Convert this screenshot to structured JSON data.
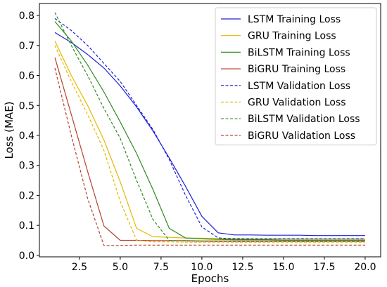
{
  "chart_data": {
    "type": "line",
    "xlabel": "Epochs",
    "ylabel": "Loss (MAE)",
    "xlim": [
      0.05,
      20.95
    ],
    "ylim": [
      -0.005,
      0.84
    ],
    "xticks": [
      2.5,
      5.0,
      7.5,
      10.0,
      12.5,
      15.0,
      17.5,
      20.0
    ],
    "xtick_labels": [
      "2.5",
      "5.0",
      "7.5",
      "10.0",
      "12.5",
      "15.0",
      "17.5",
      "20.0"
    ],
    "yticks": [
      0.0,
      0.1,
      0.2,
      0.3,
      0.4,
      0.5,
      0.6,
      0.7,
      0.8
    ],
    "ytick_labels": [
      "0.0",
      "0.1",
      "0.2",
      "0.3",
      "0.4",
      "0.5",
      "0.6",
      "0.7",
      "0.8"
    ],
    "grid": false,
    "legend_position": "top-right",
    "x": [
      1,
      2,
      3,
      4,
      5,
      6,
      7,
      8,
      9,
      10,
      11,
      12,
      13,
      14,
      15,
      16,
      17,
      18,
      19,
      20
    ],
    "series": [
      {
        "name": "LSTM Training Loss",
        "color": "#1f1fd6",
        "style": "solid",
        "values": [
          0.743,
          0.71,
          0.67,
          0.625,
          0.565,
          0.495,
          0.415,
          0.325,
          0.23,
          0.13,
          0.075,
          0.068,
          0.068,
          0.067,
          0.067,
          0.067,
          0.066,
          0.066,
          0.066,
          0.066
        ]
      },
      {
        "name": "GRU Training Loss",
        "color": "#e6b800",
        "style": "solid",
        "values": [
          0.715,
          0.6,
          0.5,
          0.385,
          0.245,
          0.09,
          0.062,
          0.06,
          0.058,
          0.057,
          0.056,
          0.056,
          0.055,
          0.055,
          0.055,
          0.055,
          0.055,
          0.055,
          0.055,
          0.055
        ]
      },
      {
        "name": "BiLSTM Training Loss",
        "color": "#2e8b1e",
        "style": "solid",
        "values": [
          0.78,
          0.715,
          0.635,
          0.545,
          0.445,
          0.34,
          0.22,
          0.09,
          0.058,
          0.055,
          0.053,
          0.052,
          0.052,
          0.052,
          0.051,
          0.051,
          0.051,
          0.051,
          0.051,
          0.051
        ]
      },
      {
        "name": "BiGRU Training Loss",
        "color": "#b5422e",
        "style": "solid",
        "values": [
          0.66,
          0.47,
          0.28,
          0.098,
          0.05,
          0.05,
          0.049,
          0.049,
          0.049,
          0.048,
          0.048,
          0.048,
          0.048,
          0.048,
          0.048,
          0.048,
          0.048,
          0.048,
          0.048,
          0.048
        ]
      },
      {
        "name": "LSTM Validation Loss",
        "color": "#1f1fd6",
        "style": "dashed",
        "values": [
          0.79,
          0.75,
          0.7,
          0.64,
          0.58,
          0.5,
          0.42,
          0.32,
          0.2,
          0.095,
          0.058,
          0.055,
          0.055,
          0.055,
          0.055,
          0.055,
          0.055,
          0.055,
          0.055,
          0.055
        ]
      },
      {
        "name": "GRU Validation Loss",
        "color": "#e6b800",
        "style": "dashed",
        "values": [
          0.7,
          0.58,
          0.47,
          0.35,
          0.18,
          0.05,
          0.045,
          0.045,
          0.044,
          0.044,
          0.044,
          0.044,
          0.044,
          0.044,
          0.044,
          0.044,
          0.044,
          0.044,
          0.044,
          0.044
        ]
      },
      {
        "name": "BiLSTM Validation Loss",
        "color": "#2e8b1e",
        "style": "dashed",
        "values": [
          0.81,
          0.7,
          0.6,
          0.49,
          0.39,
          0.25,
          0.12,
          0.05,
          0.048,
          0.047,
          0.046,
          0.046,
          0.046,
          0.046,
          0.046,
          0.046,
          0.046,
          0.046,
          0.046,
          0.046
        ]
      },
      {
        "name": "BiGRU Validation Loss",
        "color": "#b5422e",
        "style": "dashed",
        "values": [
          0.625,
          0.4,
          0.19,
          0.033,
          0.033,
          0.034,
          0.034,
          0.034,
          0.034,
          0.034,
          0.034,
          0.034,
          0.034,
          0.034,
          0.034,
          0.034,
          0.034,
          0.034,
          0.034,
          0.034
        ]
      }
    ]
  }
}
